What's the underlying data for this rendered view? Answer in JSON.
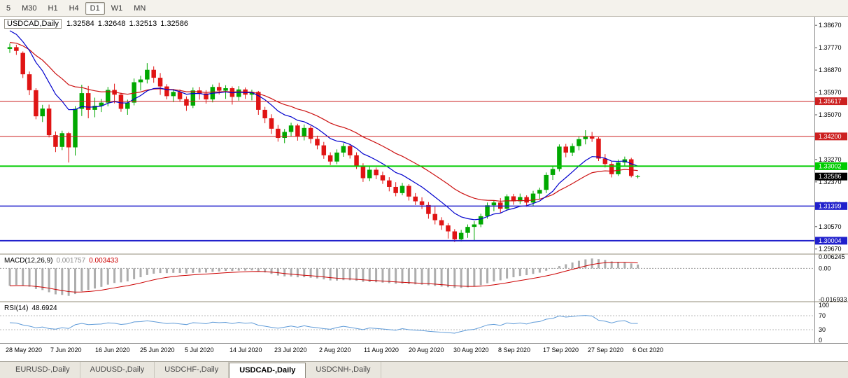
{
  "toolbar": {
    "periods": [
      {
        "label": "5",
        "active": false
      },
      {
        "label": "M30",
        "active": false
      },
      {
        "label": "H1",
        "active": false
      },
      {
        "label": "H4",
        "active": false
      },
      {
        "label": "D1",
        "active": true
      },
      {
        "label": "W1",
        "active": false
      },
      {
        "label": "MN",
        "active": false
      }
    ]
  },
  "chart_data": {
    "type": "candlestick",
    "title": "USDCAD,Daily",
    "ohlc": {
      "open": "1.32584",
      "high": "1.32648",
      "low": "1.32513",
      "close": "1.32586"
    },
    "colors": {
      "up": "#00A800",
      "down": "#E01414",
      "ma_fast": "#0000CD",
      "ma_slow": "#CC1111",
      "level_red": "#CC2020",
      "level_green": "#00CC00",
      "level_blue": "#2020CC",
      "current": "#000000",
      "macd_hist": "#ADADAD",
      "macd_signal": "#CC0000",
      "rsi": "#5F9BD8"
    },
    "y_ticks": [
      "1.38670",
      "1.37770",
      "1.36870",
      "1.35970",
      "1.35070",
      "1.34170",
      "1.33270",
      "1.32370",
      "1.31470",
      "1.30570",
      "1.29670"
    ],
    "levels": [
      {
        "price": 1.35617,
        "label": "1.35617",
        "color": "#CC2020",
        "width": 1
      },
      {
        "price": 1.342,
        "label": "1.34200",
        "color": "#CC2020",
        "width": 1
      },
      {
        "price": 1.33002,
        "label": "1.33002",
        "color": "#00CC00",
        "width": 2
      },
      {
        "price": 1.31399,
        "label": "1.31399",
        "color": "#2020CC",
        "width": 1.5
      },
      {
        "price": 1.30004,
        "label": "1.30004",
        "color": "#2020CC",
        "width": 2
      }
    ],
    "current_price": {
      "price": 1.32586,
      "label": "1.32586",
      "color": "#000000"
    },
    "ma": {
      "fast_period": 10,
      "fast_seed": 1.386,
      "slow_period": 22,
      "slow_seed": 1.38
    },
    "macd": {
      "label": "MACD(12,26,9)",
      "value_main": "0.001757",
      "value_signal": "0.003433",
      "fast": 12,
      "slow": 26,
      "signal": 9,
      "fast_seed": 1.38,
      "slow_seed": 1.39,
      "axis": [
        "0.006245",
        "0.00",
        "-0.016933"
      ]
    },
    "rsi": {
      "label": "RSI(14)",
      "value": "48.6924",
      "period": 14,
      "seed_avg": 0.003,
      "axis": [
        "100",
        "70",
        "30",
        "0"
      ],
      "levels": [
        70,
        30
      ]
    },
    "x_labels": [
      "28 May 2020",
      "7 Jun 2020",
      "16 Jun 2020",
      "25 Jun 2020",
      "5 Jul 2020",
      "14 Jul 2020",
      "23 Jul 2020",
      "2 Aug 2020",
      "11 Aug 2020",
      "20 Aug 2020",
      "30 Aug 2020",
      "8 Sep 2020",
      "17 Sep 2020",
      "27 Sep 2020",
      "6 Oct 2020"
    ],
    "candles": [
      [
        1.3772,
        1.3794,
        1.3756,
        1.3779
      ],
      [
        1.3779,
        1.3789,
        1.3748,
        1.3764
      ],
      [
        1.3756,
        1.3762,
        1.3655,
        1.367
      ],
      [
        1.367,
        1.3681,
        1.3586,
        1.3606
      ],
      [
        1.3606,
        1.3614,
        1.3489,
        1.3501
      ],
      [
        1.3501,
        1.3547,
        1.3478,
        1.3532
      ],
      [
        1.3532,
        1.3548,
        1.3416,
        1.3425
      ],
      [
        1.3425,
        1.344,
        1.3357,
        1.3378
      ],
      [
        1.3378,
        1.3443,
        1.3365,
        1.3433
      ],
      [
        1.3433,
        1.3438,
        1.3315,
        1.3376
      ],
      [
        1.3376,
        1.3542,
        1.3343,
        1.3531
      ],
      [
        1.3531,
        1.3628,
        1.3502,
        1.3594
      ],
      [
        1.3594,
        1.3623,
        1.3493,
        1.3527
      ],
      [
        1.3527,
        1.3576,
        1.3497,
        1.3543
      ],
      [
        1.3543,
        1.3571,
        1.3518,
        1.3556
      ],
      [
        1.3556,
        1.3619,
        1.3541,
        1.3607
      ],
      [
        1.3607,
        1.3632,
        1.3553,
        1.3588
      ],
      [
        1.3588,
        1.3596,
        1.3519,
        1.3531
      ],
      [
        1.3531,
        1.3568,
        1.3507,
        1.3556
      ],
      [
        1.3556,
        1.3653,
        1.3545,
        1.3638
      ],
      [
        1.3638,
        1.3664,
        1.3605,
        1.3649
      ],
      [
        1.3649,
        1.3715,
        1.3633,
        1.3688
      ],
      [
        1.3688,
        1.3702,
        1.3636,
        1.3656
      ],
      [
        1.3656,
        1.3675,
        1.3587,
        1.3621
      ],
      [
        1.3621,
        1.363,
        1.3569,
        1.3582
      ],
      [
        1.3582,
        1.3611,
        1.3558,
        1.3599
      ],
      [
        1.3599,
        1.3609,
        1.3559,
        1.357
      ],
      [
        1.357,
        1.3581,
        1.3523,
        1.3544
      ],
      [
        1.3544,
        1.3617,
        1.3534,
        1.3605
      ],
      [
        1.3605,
        1.3619,
        1.3568,
        1.3593
      ],
      [
        1.3593,
        1.3606,
        1.3552,
        1.3569
      ],
      [
        1.3569,
        1.3629,
        1.3557,
        1.3619
      ],
      [
        1.3619,
        1.3636,
        1.3589,
        1.3604
      ],
      [
        1.3604,
        1.3626,
        1.3571,
        1.3614
      ],
      [
        1.3614,
        1.3621,
        1.3548,
        1.3579
      ],
      [
        1.3579,
        1.3622,
        1.3564,
        1.3609
      ],
      [
        1.3609,
        1.3617,
        1.3571,
        1.3588
      ],
      [
        1.3588,
        1.3608,
        1.3565,
        1.3599
      ],
      [
        1.3599,
        1.3603,
        1.3507,
        1.3527
      ],
      [
        1.3527,
        1.3539,
        1.3473,
        1.3493
      ],
      [
        1.3493,
        1.3509,
        1.343,
        1.3451
      ],
      [
        1.3451,
        1.3466,
        1.3399,
        1.3414
      ],
      [
        1.3414,
        1.345,
        1.3393,
        1.3438
      ],
      [
        1.3438,
        1.3475,
        1.3419,
        1.3464
      ],
      [
        1.3464,
        1.3471,
        1.3403,
        1.3419
      ],
      [
        1.3419,
        1.3468,
        1.3404,
        1.3454
      ],
      [
        1.3454,
        1.3463,
        1.3392,
        1.341
      ],
      [
        1.341,
        1.3423,
        1.3368,
        1.3384
      ],
      [
        1.3384,
        1.3398,
        1.333,
        1.3344
      ],
      [
        1.3344,
        1.3356,
        1.3305,
        1.3319
      ],
      [
        1.3319,
        1.3368,
        1.3308,
        1.3355
      ],
      [
        1.3355,
        1.3393,
        1.3338,
        1.3381
      ],
      [
        1.3381,
        1.3388,
        1.3331,
        1.3344
      ],
      [
        1.3344,
        1.3356,
        1.3289,
        1.3301
      ],
      [
        1.3301,
        1.3312,
        1.3237,
        1.3252
      ],
      [
        1.3252,
        1.3298,
        1.324,
        1.3286
      ],
      [
        1.3286,
        1.3295,
        1.3248,
        1.3264
      ],
      [
        1.3264,
        1.3278,
        1.3229,
        1.3243
      ],
      [
        1.3243,
        1.3256,
        1.3199,
        1.3217
      ],
      [
        1.3217,
        1.3236,
        1.3179,
        1.3192
      ],
      [
        1.3192,
        1.3233,
        1.3183,
        1.3221
      ],
      [
        1.3221,
        1.3228,
        1.3162,
        1.3178
      ],
      [
        1.3178,
        1.3192,
        1.3144,
        1.3159
      ],
      [
        1.3159,
        1.3175,
        1.3128,
        1.3144
      ],
      [
        1.3144,
        1.3156,
        1.3089,
        1.3108
      ],
      [
        1.3108,
        1.3137,
        1.3066,
        1.3083
      ],
      [
        1.3083,
        1.3095,
        1.3044,
        1.3062
      ],
      [
        1.3062,
        1.3071,
        1.3009,
        1.3038
      ],
      [
        1.3038,
        1.3047,
        1.2995,
        1.3006
      ],
      [
        1.3006,
        1.3044,
        1.2997,
        1.3032
      ],
      [
        1.3032,
        1.3066,
        1.3012,
        1.3056
      ],
      [
        1.3056,
        1.3079,
        1.3001,
        1.3066
      ],
      [
        1.3066,
        1.3109,
        1.3055,
        1.3099
      ],
      [
        1.3099,
        1.3154,
        1.3089,
        1.3143
      ],
      [
        1.3143,
        1.3163,
        1.3119,
        1.3154
      ],
      [
        1.3154,
        1.3172,
        1.3113,
        1.3129
      ],
      [
        1.3129,
        1.3187,
        1.3121,
        1.3179
      ],
      [
        1.3179,
        1.3189,
        1.3145,
        1.3159
      ],
      [
        1.3159,
        1.319,
        1.3148,
        1.3176
      ],
      [
        1.3176,
        1.3183,
        1.3137,
        1.3154
      ],
      [
        1.3154,
        1.3201,
        1.314,
        1.319
      ],
      [
        1.319,
        1.3214,
        1.3169,
        1.3205
      ],
      [
        1.3205,
        1.3275,
        1.3192,
        1.3265
      ],
      [
        1.3265,
        1.3301,
        1.3245,
        1.3289
      ],
      [
        1.3289,
        1.3388,
        1.3279,
        1.3379
      ],
      [
        1.3379,
        1.339,
        1.3336,
        1.3355
      ],
      [
        1.3355,
        1.3392,
        1.3341,
        1.3381
      ],
      [
        1.3381,
        1.3419,
        1.3364,
        1.3409
      ],
      [
        1.3409,
        1.3445,
        1.3388,
        1.342
      ],
      [
        1.342,
        1.3438,
        1.3398,
        1.3411
      ],
      [
        1.3411,
        1.3417,
        1.3321,
        1.3331
      ],
      [
        1.3331,
        1.3349,
        1.3295,
        1.3309
      ],
      [
        1.3309,
        1.3319,
        1.3255,
        1.3268
      ],
      [
        1.3268,
        1.3327,
        1.3261,
        1.3315
      ],
      [
        1.3315,
        1.3339,
        1.3302,
        1.3328
      ],
      [
        1.3328,
        1.3334,
        1.3255,
        1.3261
      ],
      [
        1.32584,
        1.32648,
        1.32513,
        1.32586
      ]
    ]
  },
  "tabs": [
    {
      "label": "EURUSD-,Daily",
      "active": false
    },
    {
      "label": "AUDUSD-,Daily",
      "active": false
    },
    {
      "label": "USDCHF-,Daily",
      "active": false
    },
    {
      "label": "USDCAD-,Daily",
      "active": true
    },
    {
      "label": "USDCNH-,Daily",
      "active": false
    }
  ]
}
